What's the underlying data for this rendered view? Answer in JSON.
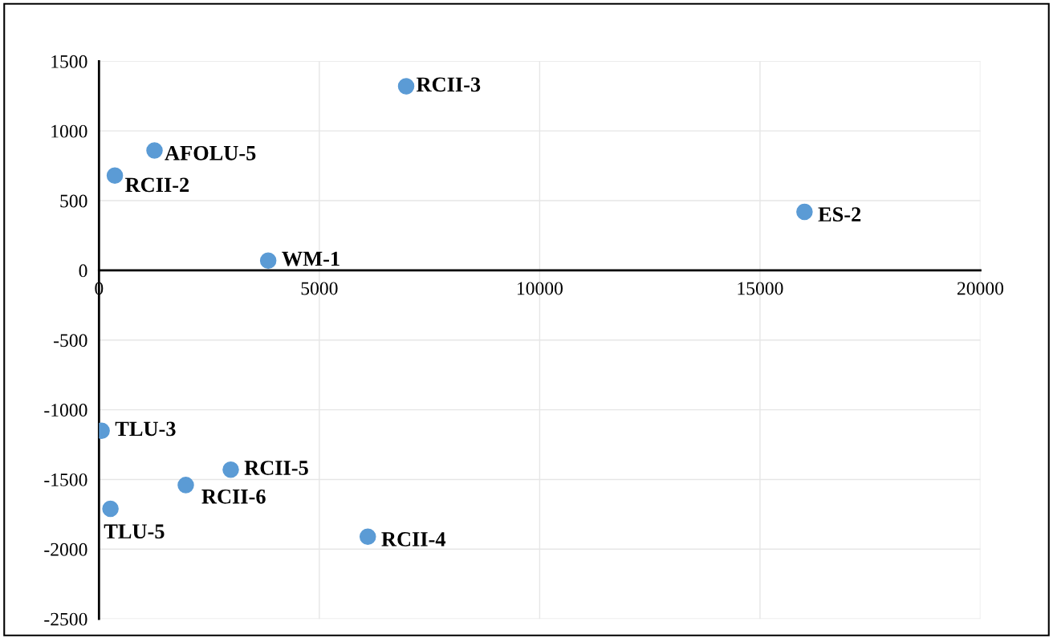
{
  "chart_data": {
    "type": "scatter",
    "marker": "circle",
    "grid": true,
    "legend": false,
    "xlim": [
      0,
      20000
    ],
    "xticks": [
      0,
      5000,
      10000,
      15000,
      20000
    ],
    "ylim": [
      -2500,
      1500
    ],
    "yticks": [
      -2500,
      -2000,
      -1500,
      -1000,
      -500,
      0,
      500,
      1000,
      1500
    ],
    "series": [
      {
        "color": "#5b9bd5",
        "x": [
          6970,
          1260,
          360,
          16010,
          3840,
          60,
          2990,
          1970,
          260,
          6100
        ],
        "values": [
          1320,
          860,
          680,
          420,
          70,
          -1150,
          -1430,
          -1540,
          -1710,
          -1910
        ]
      }
    ],
    "annotations": [
      {
        "text": "RCII-3",
        "x": 6970,
        "y": 1320
      },
      {
        "text": "AFOLU-5",
        "x": 1260,
        "y": 860
      },
      {
        "text": "RCII-2",
        "x": 360,
        "y": 680
      },
      {
        "text": "ES-2",
        "x": 16010,
        "y": 420
      },
      {
        "text": "WM-1",
        "x": 3840,
        "y": 70
      },
      {
        "text": "TLU-3",
        "x": 60,
        "y": -1150
      },
      {
        "text": "RCII-5",
        "x": 2990,
        "y": -1430
      },
      {
        "text": "RCII-6",
        "x": 1970,
        "y": -1540
      },
      {
        "text": "TLU-5",
        "x": 260,
        "y": -1710
      },
      {
        "text": "RCII-4",
        "x": 6100,
        "y": -1910
      }
    ]
  }
}
